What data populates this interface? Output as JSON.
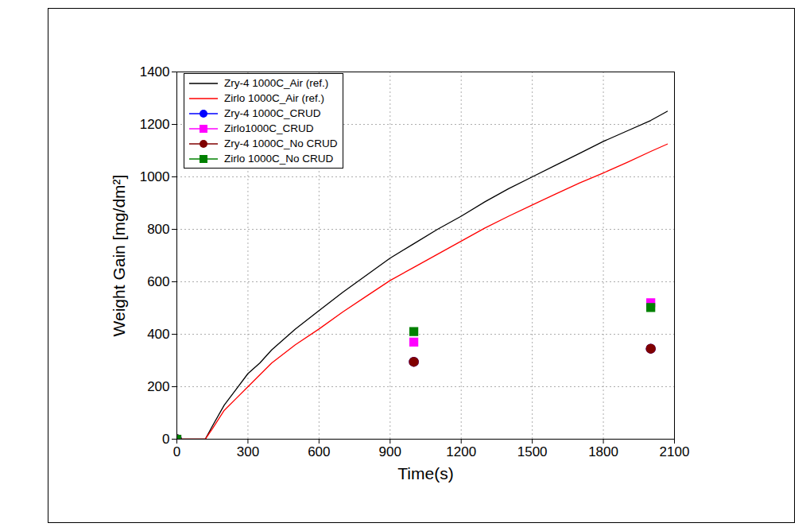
{
  "chart_data": {
    "type": "line",
    "x_label": "Time(s)",
    "y_label": "Weight Gain [mg/dm²]",
    "xlim": [
      0,
      2100
    ],
    "xticks": [
      0,
      300,
      600,
      900,
      1200,
      1500,
      1800,
      2100
    ],
    "ylim": [
      0,
      1400
    ],
    "yticks": [
      0,
      200,
      400,
      600,
      800,
      1000,
      1200,
      1400
    ],
    "grid": true,
    "legend": "upper left",
    "series": [
      {
        "name": "Zry-4 1000C_Air (ref.)",
        "type": "line",
        "color": "#000000",
        "line_style": "solid",
        "x": [
          0,
          120,
          150,
          200,
          250,
          300,
          350,
          400,
          500,
          600,
          700,
          800,
          900,
          1000,
          1100,
          1200,
          1300,
          1400,
          1500,
          1600,
          1700,
          1800,
          1900,
          2000,
          2070
        ],
        "values": [
          0,
          0,
          50,
          130,
          190,
          250,
          290,
          340,
          420,
          490,
          560,
          625,
          690,
          745,
          800,
          850,
          905,
          955,
          1000,
          1045,
          1090,
          1135,
          1175,
          1215,
          1250
        ]
      },
      {
        "name": "Zirlo 1000C_Air (ref.)",
        "type": "line",
        "color": "#ff0000",
        "line_style": "solid",
        "x": [
          0,
          120,
          150,
          200,
          250,
          300,
          400,
          500,
          600,
          700,
          800,
          900,
          1000,
          1100,
          1200,
          1300,
          1400,
          1500,
          1600,
          1700,
          1800,
          1900,
          2000,
          2070
        ],
        "values": [
          0,
          0,
          40,
          110,
          155,
          200,
          290,
          360,
          420,
          485,
          545,
          605,
          655,
          705,
          755,
          805,
          850,
          893,
          935,
          977,
          1015,
          1055,
          1097,
          1125
        ]
      },
      {
        "name": "Zry-4 1000C_CRUD",
        "type": "scatter",
        "color": "#0000ff",
        "marker": "circle",
        "x": [
          0,
          1000,
          2000
        ],
        "values": [
          0,
          295,
          345
        ]
      },
      {
        "name": "Zirlo1000C_CRUD",
        "type": "scatter",
        "color": "#ff00ff",
        "marker": "square",
        "x": [
          0,
          1000,
          2000
        ],
        "values": [
          0,
          370,
          520
        ]
      },
      {
        "name": "Zry-4 1000C_No CRUD",
        "type": "scatter",
        "color": "#800000",
        "marker": "circle",
        "x": [
          0,
          1000,
          2000
        ],
        "values": [
          0,
          295,
          345
        ]
      },
      {
        "name": "Zirlo 1000C_No CRUD",
        "type": "scatter",
        "color": "#008000",
        "marker": "square",
        "x": [
          0,
          1000,
          2000
        ],
        "values": [
          0,
          410,
          502
        ]
      }
    ]
  }
}
